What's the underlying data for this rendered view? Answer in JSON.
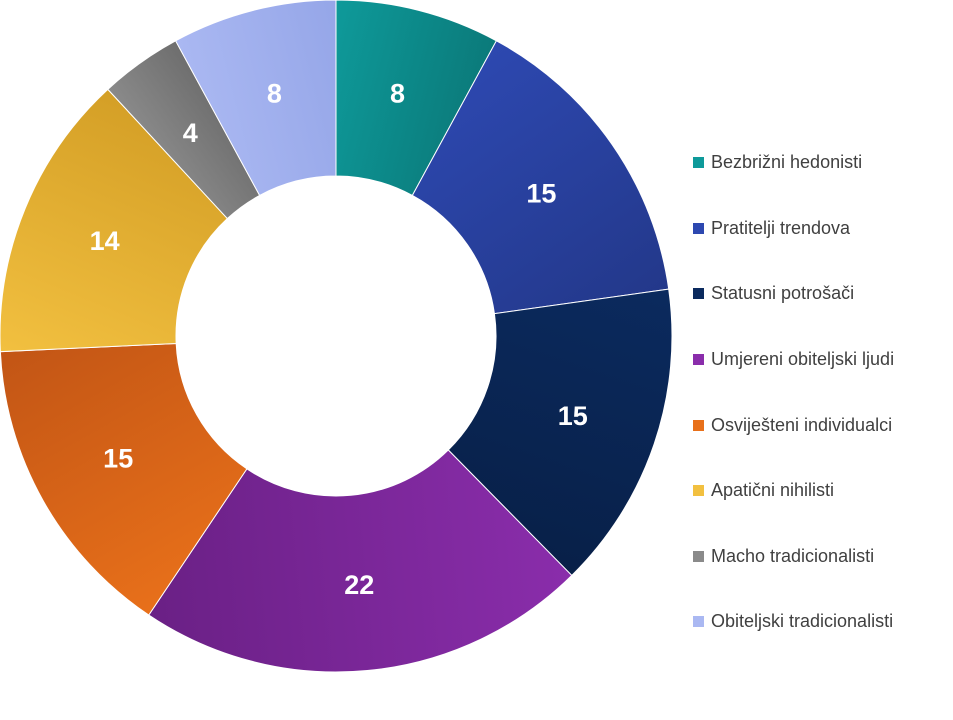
{
  "chart_data": {
    "type": "pie",
    "variant": "donut",
    "title": "",
    "legend_position": "right",
    "series": [
      {
        "name": "Bezbrižni hedonisti",
        "value": 8,
        "label": "8",
        "color": "#0e9a9a",
        "color_dark": "#0b7a7a"
      },
      {
        "name": "Pratitelji trendova",
        "value": 15,
        "label": "15",
        "color": "#2d48b0",
        "color_dark": "#23388a"
      },
      {
        "name": "Statusni potrošači",
        "value": 15,
        "label": "15",
        "color": "#0b2a5e",
        "color_dark": "#082048"
      },
      {
        "name": "Umjereni obiteljski ljudi",
        "value": 22,
        "label": "22",
        "color": "#8a2dab",
        "color_dark": "#6a2085"
      },
      {
        "name": "Osviješteni individualci",
        "value": 15,
        "label": "15",
        "color": "#e8701a",
        "color_dark": "#c25515"
      },
      {
        "name": "Apatični nihilisti",
        "value": 14,
        "label": "14",
        "color": "#f2c040",
        "color_dark": "#d49f26"
      },
      {
        "name": "Macho tradicionalisti",
        "value": 4,
        "label": "4",
        "color": "#8a8a8a",
        "color_dark": "#6e6e6e"
      },
      {
        "name": "Obiteljski tradicionalisti",
        "value": 8,
        "label": "8",
        "color": "#aab8f2",
        "color_dark": "#95a6e8"
      }
    ]
  }
}
